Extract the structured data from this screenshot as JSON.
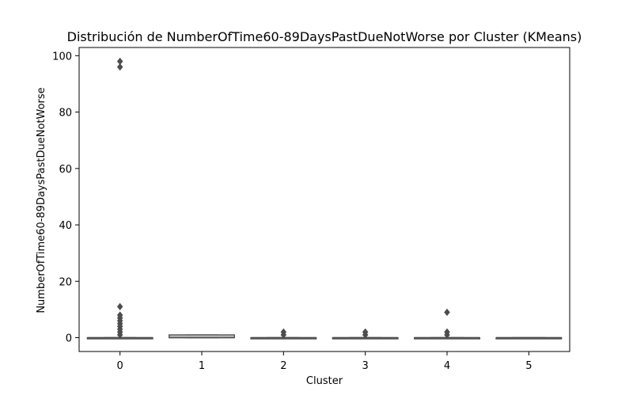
{
  "chart_data": {
    "type": "box",
    "title": "Distribución de NumberOfTime60-89DaysPastDueNotWorse por Cluster (KMeans)",
    "xlabel": "Cluster",
    "ylabel": "NumberOfTime60-89DaysPastDueNotWorse",
    "ylim": [
      -4.9,
      102.9
    ],
    "yticks": [
      0,
      20,
      40,
      60,
      80,
      100
    ],
    "categories": [
      "0",
      "1",
      "2",
      "3",
      "4",
      "5"
    ],
    "box_color": "#c0c0c0",
    "line_color": "#4d4d4d",
    "grid": false,
    "series": [
      {
        "category": "0",
        "q1": 0,
        "median": 0,
        "q3": 0,
        "whisker_low": 0,
        "whisker_high": 0,
        "outliers": [
          1,
          2,
          3,
          4,
          5,
          6,
          7,
          8,
          11,
          96,
          98
        ]
      },
      {
        "category": "1",
        "q1": 0,
        "median": 0,
        "q3": 1,
        "whisker_low": 0,
        "whisker_high": 1,
        "outliers": []
      },
      {
        "category": "2",
        "q1": 0,
        "median": 0,
        "q3": 0,
        "whisker_low": 0,
        "whisker_high": 0,
        "outliers": [
          1,
          2
        ]
      },
      {
        "category": "3",
        "q1": 0,
        "median": 0,
        "q3": 0,
        "whisker_low": 0,
        "whisker_high": 0,
        "outliers": [
          1,
          2
        ]
      },
      {
        "category": "4",
        "q1": 0,
        "median": 0,
        "q3": 0,
        "whisker_low": 0,
        "whisker_high": 0,
        "outliers": [
          1,
          2,
          9
        ]
      },
      {
        "category": "5",
        "q1": 0,
        "median": 0,
        "q3": 0,
        "whisker_low": 0,
        "whisker_high": 0,
        "outliers": []
      }
    ]
  }
}
